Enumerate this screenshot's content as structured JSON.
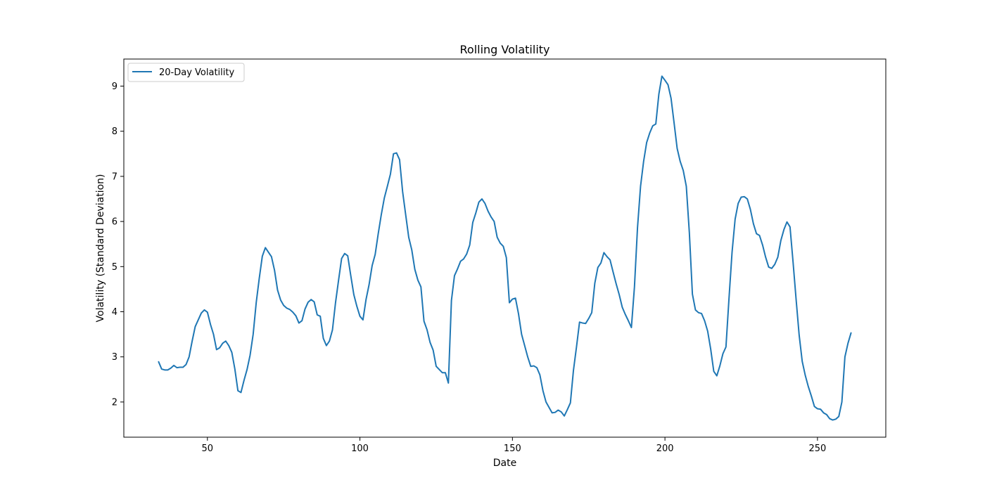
{
  "chart_data": {
    "type": "line",
    "title": "Rolling Volatility",
    "xlabel": "Date",
    "ylabel": "Volatility (Standard Deviation)",
    "xlim": [
      22.6,
      272.4
    ],
    "ylim": [
      1.22,
      9.6
    ],
    "xticks": [
      50,
      100,
      150,
      200,
      250
    ],
    "yticks": [
      2,
      3,
      4,
      5,
      6,
      7,
      8,
      9
    ],
    "grid": false,
    "legend_position": "top-left",
    "series": [
      {
        "name": "20-Day Volatility",
        "color": "#1f77b4",
        "x": [
          34,
          35,
          36,
          37,
          38,
          39,
          40,
          41,
          42,
          43,
          44,
          45,
          46,
          47,
          48,
          49,
          50,
          51,
          52,
          53,
          54,
          55,
          56,
          57,
          58,
          59,
          60,
          61,
          62,
          63,
          64,
          65,
          66,
          67,
          68,
          69,
          70,
          71,
          72,
          73,
          74,
          75,
          76,
          77,
          78,
          79,
          80,
          81,
          82,
          83,
          84,
          85,
          86,
          87,
          88,
          89,
          90,
          91,
          92,
          93,
          94,
          95,
          96,
          97,
          98,
          99,
          100,
          101,
          102,
          103,
          104,
          105,
          106,
          107,
          108,
          109,
          110,
          111,
          112,
          113,
          114,
          115,
          116,
          117,
          118,
          119,
          120,
          121,
          122,
          123,
          124,
          125,
          126,
          127,
          128,
          129,
          130,
          131,
          132,
          133,
          134,
          135,
          136,
          137,
          138,
          139,
          140,
          141,
          142,
          143,
          144,
          145,
          146,
          147,
          148,
          149,
          150,
          151,
          152,
          153,
          154,
          155,
          156,
          157,
          158,
          159,
          160,
          161,
          162,
          163,
          164,
          165,
          166,
          167,
          168,
          169,
          170,
          171,
          172,
          173,
          174,
          175,
          176,
          177,
          178,
          179,
          180,
          181,
          182,
          183,
          184,
          185,
          186,
          187,
          188,
          189,
          190,
          191,
          192,
          193,
          194,
          195,
          196,
          197,
          198,
          199,
          200,
          201,
          202,
          203,
          204,
          205,
          206,
          207,
          208,
          209,
          210,
          211,
          212,
          213,
          214,
          215,
          216,
          217,
          218,
          219,
          220,
          221,
          222,
          223,
          224,
          225,
          226,
          227,
          228,
          229,
          230,
          231,
          232,
          233,
          234,
          235,
          236,
          237,
          238,
          239,
          240,
          241,
          242,
          243,
          244,
          245,
          246,
          247,
          248,
          249,
          250,
          251,
          252,
          253,
          254,
          255,
          256,
          257,
          258,
          259,
          260,
          261
        ],
        "y": [
          2.89,
          2.73,
          2.71,
          2.71,
          2.75,
          2.81,
          2.76,
          2.77,
          2.77,
          2.83,
          3.0,
          3.35,
          3.67,
          3.82,
          3.97,
          4.04,
          3.99,
          3.72,
          3.5,
          3.16,
          3.2,
          3.3,
          3.35,
          3.25,
          3.1,
          2.73,
          2.25,
          2.21,
          2.48,
          2.72,
          3.04,
          3.5,
          4.2,
          4.74,
          5.23,
          5.42,
          5.32,
          5.22,
          4.92,
          4.48,
          4.26,
          4.14,
          4.08,
          4.05,
          3.99,
          3.91,
          3.75,
          3.8,
          4.06,
          4.21,
          4.27,
          4.22,
          3.93,
          3.9,
          3.41,
          3.25,
          3.35,
          3.6,
          4.2,
          4.7,
          5.18,
          5.29,
          5.24,
          4.8,
          4.38,
          4.12,
          3.9,
          3.82,
          4.27,
          4.6,
          5.02,
          5.27,
          5.73,
          6.15,
          6.52,
          6.78,
          7.05,
          7.5,
          7.52,
          7.37,
          6.66,
          6.15,
          5.65,
          5.37,
          4.94,
          4.7,
          4.55,
          3.79,
          3.6,
          3.32,
          3.15,
          2.79,
          2.72,
          2.65,
          2.65,
          2.42,
          4.25,
          4.8,
          4.95,
          5.12,
          5.17,
          5.28,
          5.48,
          5.98,
          6.19,
          6.43,
          6.5,
          6.4,
          6.23,
          6.1,
          6.0,
          5.65,
          5.52,
          5.45,
          5.2,
          4.2,
          4.28,
          4.3,
          3.95,
          3.5,
          3.25,
          3.0,
          2.79,
          2.8,
          2.76,
          2.6,
          2.25,
          2.0,
          1.88,
          1.76,
          1.77,
          1.82,
          1.78,
          1.69,
          1.83,
          1.98,
          2.7,
          3.22,
          3.77,
          3.75,
          3.74,
          3.85,
          3.98,
          4.63,
          4.98,
          5.08,
          5.31,
          5.22,
          5.15,
          4.88,
          4.62,
          4.38,
          4.1,
          3.94,
          3.8,
          3.65,
          4.55,
          5.86,
          6.78,
          7.33,
          7.75,
          7.96,
          8.12,
          8.16,
          8.82,
          9.22,
          9.13,
          9.03,
          8.73,
          8.18,
          7.62,
          7.33,
          7.13,
          6.78,
          5.75,
          4.39,
          4.04,
          3.98,
          3.96,
          3.8,
          3.57,
          3.17,
          2.68,
          2.58,
          2.8,
          3.07,
          3.22,
          4.3,
          5.32,
          6.05,
          6.4,
          6.54,
          6.55,
          6.5,
          6.27,
          5.95,
          5.73,
          5.69,
          5.48,
          5.21,
          4.99,
          4.96,
          5.05,
          5.21,
          5.58,
          5.82,
          5.99,
          5.88,
          5.1,
          4.27,
          3.48,
          2.9,
          2.59,
          2.34,
          2.13,
          1.9,
          1.85,
          1.84,
          1.76,
          1.72,
          1.63,
          1.6,
          1.62,
          1.68,
          2.0,
          3.0,
          3.3,
          3.53
        ]
      }
    ]
  }
}
